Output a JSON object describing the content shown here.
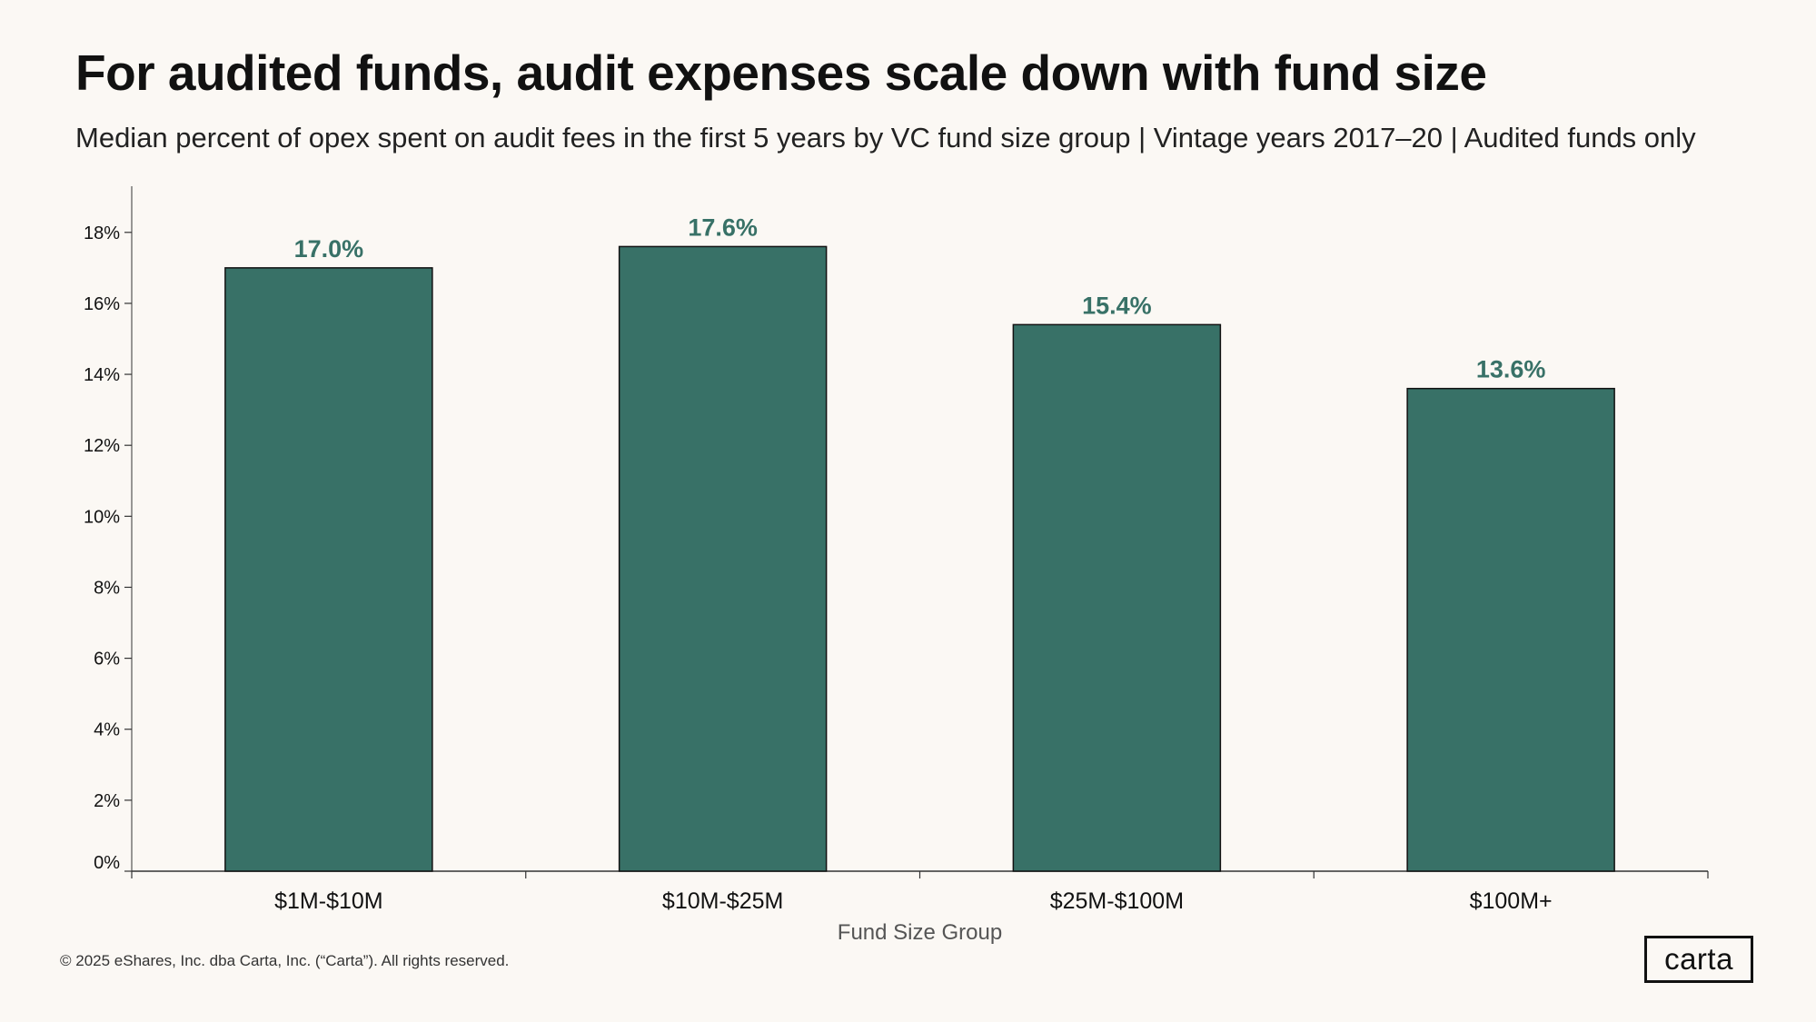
{
  "title": "For audited funds, audit expenses scale down with fund size",
  "subtitle": "Median percent of opex spent on audit fees in the first 5 years by VC fund size group | Vintage years 2017–20 | Audited funds only",
  "footer": "© 2025 eShares, Inc. dba Carta, Inc. (“Carta”). All rights reserved.",
  "logo": "carta",
  "colors": {
    "background": "#FBF8F4",
    "bar": "#387167",
    "bar_outline": "#111111",
    "value_label": "#387167"
  },
  "chart_data": {
    "type": "bar",
    "categories": [
      "$1M-$10M",
      "$10M-$25M",
      "$25M-$100M",
      "$100M+"
    ],
    "values": [
      17.0,
      17.6,
      15.4,
      13.6
    ],
    "value_labels": [
      "17.0%",
      "17.6%",
      "15.4%",
      "13.6%"
    ],
    "xlabel": "Fund Size Group",
    "ylabel": "",
    "ylim": [
      0,
      19.3
    ],
    "yticks": [
      0,
      2,
      4,
      6,
      8,
      10,
      12,
      14,
      16,
      18
    ],
    "ytick_labels": [
      "0%",
      "2%",
      "4%",
      "6%",
      "8%",
      "10%",
      "12%",
      "14%",
      "16%",
      "18%"
    ],
    "grid": false,
    "legend": "none"
  }
}
